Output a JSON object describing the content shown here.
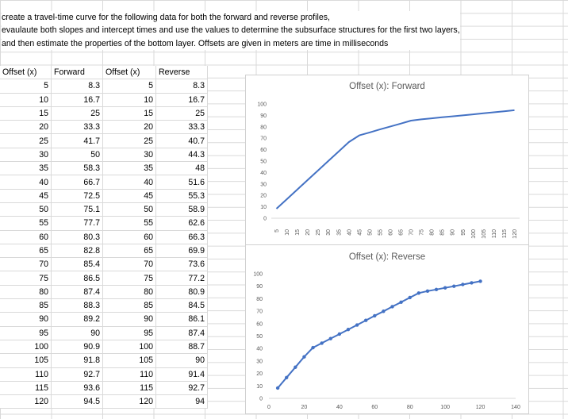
{
  "instructions": [
    "create a travel-time curve for the following data for both the forward and reverse profiles,",
    "evaulaute both slopes and intercept times and use the values to determine the subsurface structures for the first two layers,",
    "and then estimate the properties of the bottom layer. Offsets are given in meters are time in milliseconds"
  ],
  "table": {
    "headers": [
      "Offset (x)",
      "Forward",
      "Offset (x)",
      "Reverse"
    ],
    "rows": [
      [
        "5",
        "8.3",
        "5",
        "8.3"
      ],
      [
        "10",
        "16.7",
        "10",
        "16.7"
      ],
      [
        "15",
        "25",
        "15",
        "25"
      ],
      [
        "20",
        "33.3",
        "20",
        "33.3"
      ],
      [
        "25",
        "41.7",
        "25",
        "40.7"
      ],
      [
        "30",
        "50",
        "30",
        "44.3"
      ],
      [
        "35",
        "58.3",
        "35",
        "48"
      ],
      [
        "40",
        "66.7",
        "40",
        "51.6"
      ],
      [
        "45",
        "72.5",
        "45",
        "55.3"
      ],
      [
        "50",
        "75.1",
        "50",
        "58.9"
      ],
      [
        "55",
        "77.7",
        "55",
        "62.6"
      ],
      [
        "60",
        "80.3",
        "60",
        "66.3"
      ],
      [
        "65",
        "82.8",
        "65",
        "69.9"
      ],
      [
        "70",
        "85.4",
        "70",
        "73.6"
      ],
      [
        "75",
        "86.5",
        "75",
        "77.2"
      ],
      [
        "80",
        "87.4",
        "80",
        "80.9"
      ],
      [
        "85",
        "88.3",
        "85",
        "84.5"
      ],
      [
        "90",
        "89.2",
        "90",
        "86.1"
      ],
      [
        "95",
        "90",
        "95",
        "87.4"
      ],
      [
        "100",
        "90.9",
        "100",
        "88.7"
      ],
      [
        "105",
        "91.8",
        "105",
        "90"
      ],
      [
        "110",
        "92.7",
        "110",
        "91.4"
      ],
      [
        "115",
        "93.6",
        "115",
        "92.7"
      ],
      [
        "120",
        "94.5",
        "120",
        "94"
      ]
    ]
  },
  "chart_data": [
    {
      "type": "line",
      "title": "Offset (x): Forward",
      "x": [
        "5",
        "10",
        "15",
        "20",
        "25",
        "30",
        "35",
        "40",
        "45",
        "50",
        "55",
        "60",
        "65",
        "70",
        "75",
        "80",
        "85",
        "90",
        "95",
        "100",
        "105",
        "110",
        "115",
        "120"
      ],
      "values": [
        8.3,
        16.7,
        25,
        33.3,
        41.7,
        50,
        58.3,
        66.7,
        72.5,
        75.1,
        77.7,
        80.3,
        82.8,
        85.4,
        86.5,
        87.4,
        88.3,
        89.2,
        90,
        90.9,
        91.8,
        92.7,
        93.6,
        94.5
      ],
      "ylim": [
        0,
        100
      ],
      "yticks": [
        0,
        10,
        20,
        30,
        40,
        50,
        60,
        70,
        80,
        90,
        100
      ],
      "grid": false,
      "color": "#4472c4"
    },
    {
      "type": "scatter",
      "title": "Offset (x): Reverse",
      "x": [
        5,
        10,
        15,
        20,
        25,
        30,
        35,
        40,
        45,
        50,
        55,
        60,
        65,
        70,
        75,
        80,
        85,
        90,
        95,
        100,
        105,
        110,
        115,
        120
      ],
      "values": [
        8.3,
        16.7,
        25,
        33.3,
        40.7,
        44.3,
        48,
        51.6,
        55.3,
        58.9,
        62.6,
        66.3,
        69.9,
        73.6,
        77.2,
        80.9,
        84.5,
        86.1,
        87.4,
        88.7,
        90,
        91.4,
        92.7,
        94
      ],
      "xlim": [
        0,
        140
      ],
      "xticks": [
        0,
        20,
        40,
        60,
        80,
        100,
        120,
        140
      ],
      "ylim": [
        0,
        100
      ],
      "yticks": [
        0,
        10,
        20,
        30,
        40,
        50,
        60,
        70,
        80,
        90,
        100
      ],
      "grid": false,
      "color": "#4472c4"
    }
  ]
}
